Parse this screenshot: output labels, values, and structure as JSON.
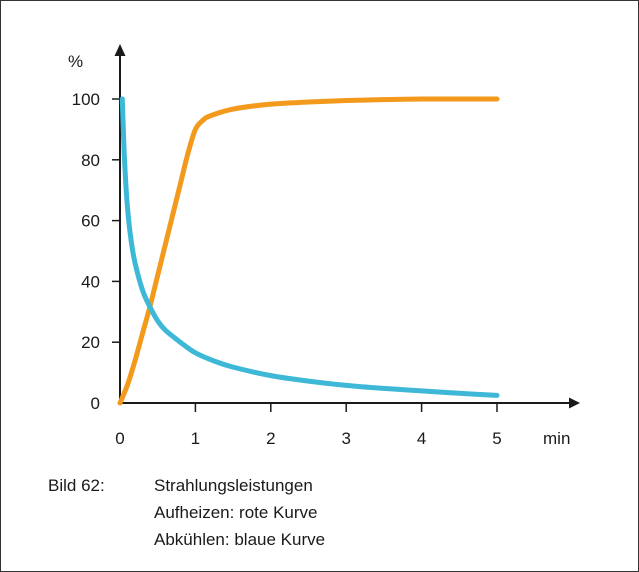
{
  "chart_data": {
    "type": "line",
    "title": "",
    "xlabel": "min",
    "ylabel": "%",
    "xlim": [
      0,
      5
    ],
    "ylim": [
      0,
      100
    ],
    "x_ticks": [
      "0",
      "1",
      "2",
      "3",
      "4",
      "5"
    ],
    "y_ticks": [
      "0",
      "20",
      "40",
      "60",
      "80",
      "100"
    ],
    "grid": false,
    "legend": "none",
    "series": [
      {
        "color": "#f39a1c",
        "x": [
          0,
          0.1,
          0.2,
          0.3,
          0.4,
          0.5,
          0.6,
          0.7,
          0.8,
          0.9,
          1.0,
          1.1,
          1.2,
          1.5,
          2.0,
          2.5,
          3.0,
          3.5,
          4.0,
          4.5,
          5.0
        ],
        "y": [
          0,
          6,
          14,
          23,
          32,
          42,
          52,
          62,
          72,
          82,
          90,
          93,
          94.5,
          96.7,
          98.3,
          99.0,
          99.5,
          99.8,
          100,
          100,
          100
        ]
      },
      {
        "color": "#3db8d6",
        "x": [
          0.03,
          0.06,
          0.1,
          0.15,
          0.2,
          0.3,
          0.4,
          0.5,
          0.6,
          0.8,
          1.0,
          1.25,
          1.5,
          2.0,
          2.5,
          3.0,
          3.5,
          4.0,
          4.5,
          5.0
        ],
        "y": [
          100,
          80,
          64,
          53,
          46,
          37,
          31.5,
          27,
          24,
          20,
          16.5,
          13.8,
          11.8,
          9,
          7.2,
          5.8,
          4.8,
          4,
          3.2,
          2.5
        ]
      }
    ]
  },
  "caption": {
    "label": "Bild 62:",
    "line1": "Strahlungsleistungen",
    "line2": "Aufheizen: rote Kurve",
    "line3": "Abkühlen: blaue Kurve"
  }
}
